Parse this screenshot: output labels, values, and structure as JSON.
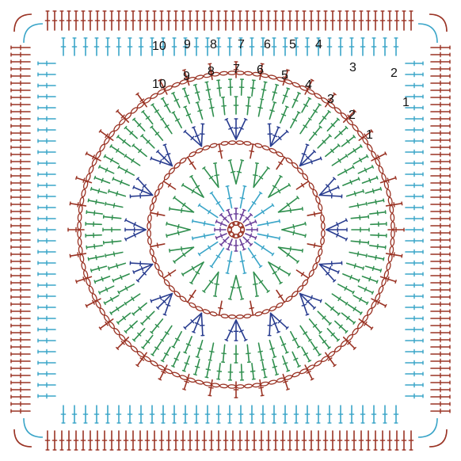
{
  "colors": {
    "brown": "#9a3324",
    "green": "#2f8f4e",
    "navy": "#283c8f",
    "teal": "#3aa5c8",
    "purple": "#6a3f9a",
    "text": "#111111",
    "background": "#ffffff"
  },
  "round_labels_top": [
    "10",
    "9",
    "8",
    "7",
    "6",
    "5",
    "4"
  ],
  "round_labels_right": [
    "3",
    "2",
    "1"
  ],
  "round_labels_arc": [
    "10",
    "9",
    "8",
    "7",
    "6",
    "5",
    "4",
    "3",
    "2",
    "1"
  ]
}
